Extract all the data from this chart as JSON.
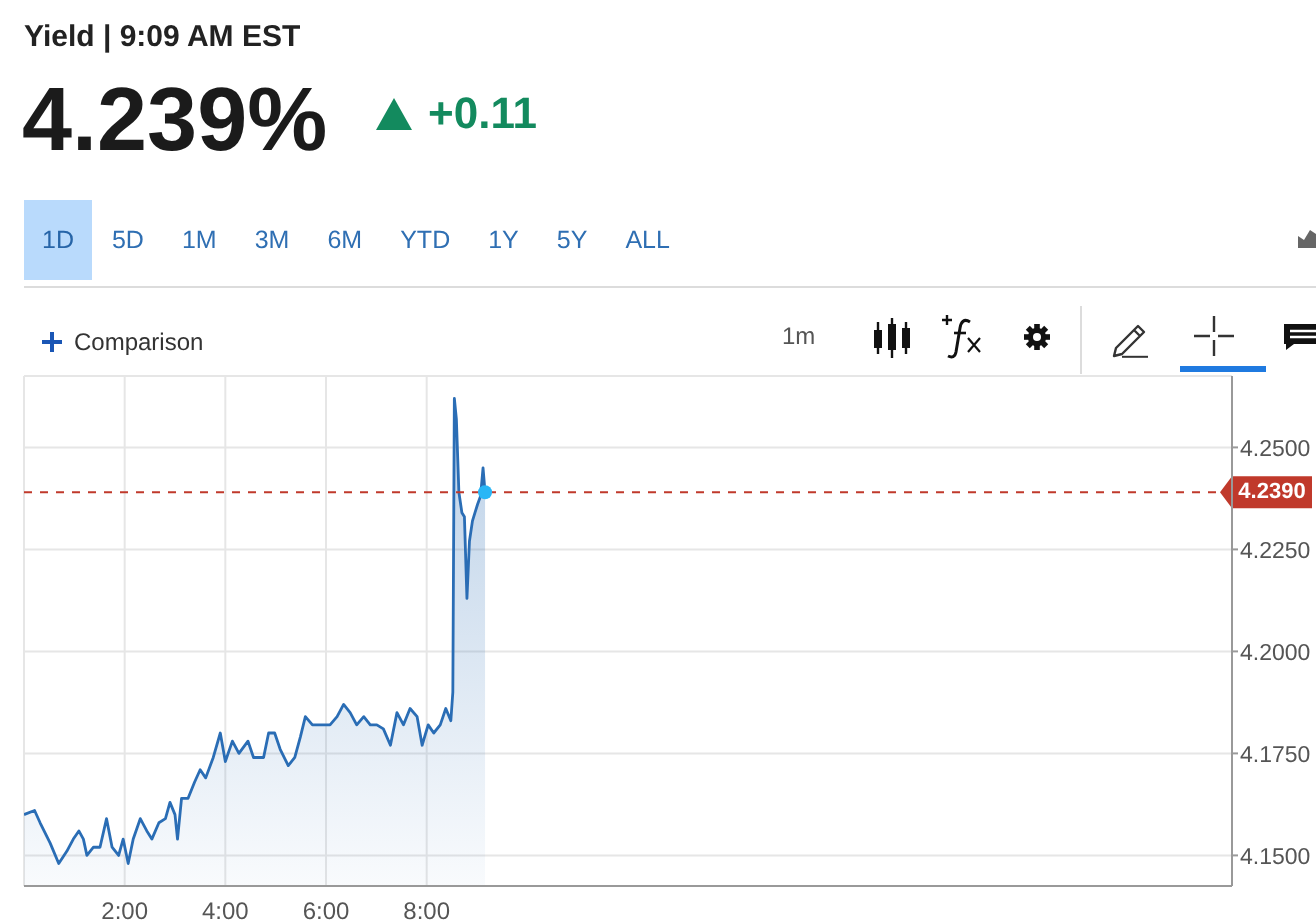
{
  "chart_data": {
    "type": "area",
    "title": "Yield | 9:09 AM EST",
    "annotations": [
      "4.239%",
      "+0.11",
      "1D",
      "5D",
      "1M",
      "3M",
      "6M",
      "YTD",
      "1Y",
      "5Y",
      "ALL",
      "Comparison",
      "1m"
    ],
    "xlim": [
      0,
      24
    ],
    "xticks": [
      {
        "value": 2,
        "label": "2:00"
      },
      {
        "value": 4,
        "label": "4:00"
      },
      {
        "value": 6,
        "label": "6:00"
      },
      {
        "value": 8,
        "label": "8:00"
      }
    ],
    "ylim": [
      4.1425,
      4.2675
    ],
    "yticks": [
      {
        "value": 4.15,
        "label": "4.1500"
      },
      {
        "value": 4.175,
        "label": "4.1750"
      },
      {
        "value": 4.2,
        "label": "4.2000"
      },
      {
        "value": 4.225,
        "label": "4.2250"
      },
      {
        "value": 4.25,
        "label": "4.2500"
      }
    ],
    "grid": true,
    "series": [
      {
        "color": "#2a6db5",
        "x": [
          0,
          0.21,
          0.32,
          0.52,
          0.69,
          0.85,
          0.98,
          1.09,
          1.18,
          1.25,
          1.38,
          1.51,
          1.64,
          1.75,
          1.88,
          1.97,
          2.07,
          2.17,
          2.31,
          2.44,
          2.54,
          2.68,
          2.81,
          2.9,
          3.0,
          3.05,
          3.13,
          3.26,
          3.39,
          3.5,
          3.61,
          3.76,
          3.9,
          4.0,
          4.14,
          4.27,
          4.45,
          4.56,
          4.76,
          4.86,
          4.98,
          5.09,
          5.25,
          5.38,
          5.49,
          5.59,
          5.73,
          5.88,
          6.08,
          6.22,
          6.35,
          6.48,
          6.61,
          6.75,
          6.88,
          7.01,
          7.14,
          7.28,
          7.41,
          7.54,
          7.67,
          7.81,
          7.91,
          8.03,
          8.14,
          8.27,
          8.38,
          8.48,
          8.52,
          8.55,
          8.59,
          8.64,
          8.7,
          8.75,
          8.8,
          8.85,
          8.91,
          8.96,
          9.01,
          9.07,
          9.12,
          9.16
        ],
        "values": [
          4.16,
          4.161,
          4.158,
          4.153,
          4.148,
          4.151,
          4.154,
          4.156,
          4.154,
          4.15,
          4.152,
          4.152,
          4.159,
          4.152,
          4.15,
          4.154,
          4.148,
          4.154,
          4.159,
          4.156,
          4.154,
          4.158,
          4.159,
          4.163,
          4.16,
          4.154,
          4.164,
          4.164,
          4.168,
          4.171,
          4.169,
          4.174,
          4.18,
          4.173,
          4.178,
          4.175,
          4.178,
          4.174,
          4.174,
          4.18,
          4.18,
          4.176,
          4.172,
          4.174,
          4.179,
          4.184,
          4.182,
          4.182,
          4.182,
          4.184,
          4.187,
          4.185,
          4.182,
          4.184,
          4.182,
          4.182,
          4.181,
          4.177,
          4.185,
          4.182,
          4.186,
          4.184,
          4.177,
          4.182,
          4.18,
          4.182,
          4.186,
          4.183,
          4.19,
          4.262,
          4.257,
          4.239,
          4.234,
          4.233,
          4.213,
          4.227,
          4.232,
          4.234,
          4.236,
          4.238,
          4.245,
          4.239
        ]
      },
      {
        "type": "scatter",
        "color": "#29b6f6",
        "x": [
          9.16
        ],
        "values": [
          4.239
        ]
      }
    ],
    "ref_lines": [
      {
        "axis": "y",
        "value": 4.239,
        "label": "4.2390",
        "color": "#c0392b",
        "line_style": "dashed"
      }
    ]
  }
}
